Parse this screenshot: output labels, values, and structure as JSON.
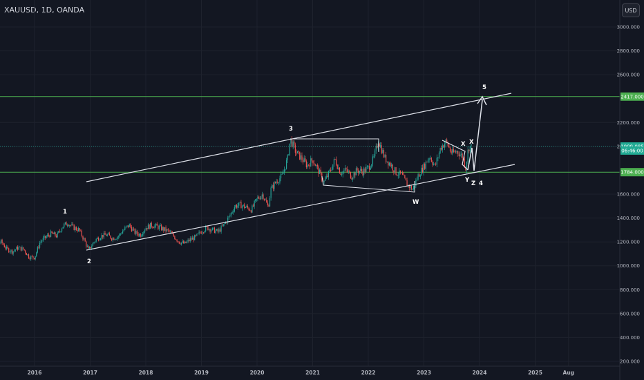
{
  "header": {
    "symbol_title": "XAUUSD, 1D, OANDA",
    "currency_label": "USD"
  },
  "chart_data": {
    "type": "candlestick",
    "y_axis": {
      "ylim": [
        160,
        3400
      ],
      "ticks": [
        "3000.000",
        "2800.000",
        "2600.000",
        "2200.000",
        "2000.000",
        "1600.000",
        "1400.000",
        "1200.000",
        "1000.000",
        "800.000",
        "600.000",
        "400.000",
        "200.000"
      ],
      "tick_values": [
        3000,
        2800,
        2600,
        2200,
        2000,
        1600,
        1400,
        1200,
        1000,
        800,
        600,
        400,
        200
      ]
    },
    "x_axis": {
      "ticks": [
        "2016",
        "2017",
        "2018",
        "2019",
        "2020",
        "2021",
        "2022",
        "2023",
        "2024",
        "2025",
        "Aug"
      ]
    },
    "price_labels": [
      {
        "text": "2417.000",
        "value": 2417,
        "color": "#4caf50"
      },
      {
        "text": "1999.085",
        "value": 1999.085,
        "color": "#22ab94"
      },
      {
        "text": "06:46:00",
        "value": 1965,
        "color": "#22ab94"
      },
      {
        "text": "1784.000",
        "value": 1784,
        "color": "#4caf50"
      }
    ],
    "horizontal_levels": [
      2417,
      1784
    ],
    "current_price": 1999.085,
    "wave_labels": [
      "1",
      "2",
      "3",
      "W",
      "X",
      "Y",
      "X",
      "Z",
      "4",
      "5"
    ],
    "close_series": [
      {
        "t": 2015.0,
        "v": 1185
      },
      {
        "t": 2015.1,
        "v": 1215
      },
      {
        "t": 2015.2,
        "v": 1195
      },
      {
        "t": 2015.3,
        "v": 1180
      },
      {
        "t": 2015.4,
        "v": 1200
      },
      {
        "t": 2015.5,
        "v": 1140
      },
      {
        "t": 2015.6,
        "v": 1120
      },
      {
        "t": 2015.7,
        "v": 1150
      },
      {
        "t": 2015.8,
        "v": 1140
      },
      {
        "t": 2015.9,
        "v": 1075
      },
      {
        "t": 2016.0,
        "v": 1070
      },
      {
        "t": 2016.1,
        "v": 1200
      },
      {
        "t": 2016.2,
        "v": 1240
      },
      {
        "t": 2016.3,
        "v": 1270
      },
      {
        "t": 2016.4,
        "v": 1250
      },
      {
        "t": 2016.5,
        "v": 1330
      },
      {
        "t": 2016.6,
        "v": 1360
      },
      {
        "t": 2016.7,
        "v": 1320
      },
      {
        "t": 2016.8,
        "v": 1300
      },
      {
        "t": 2016.9,
        "v": 1210
      },
      {
        "t": 2016.97,
        "v": 1130
      },
      {
        "t": 2017.1,
        "v": 1220
      },
      {
        "t": 2017.2,
        "v": 1250
      },
      {
        "t": 2017.3,
        "v": 1260
      },
      {
        "t": 2017.4,
        "v": 1230
      },
      {
        "t": 2017.5,
        "v": 1245
      },
      {
        "t": 2017.6,
        "v": 1300
      },
      {
        "t": 2017.7,
        "v": 1340
      },
      {
        "t": 2017.8,
        "v": 1280
      },
      {
        "t": 2017.9,
        "v": 1260
      },
      {
        "t": 2018.0,
        "v": 1320
      },
      {
        "t": 2018.1,
        "v": 1340
      },
      {
        "t": 2018.2,
        "v": 1330
      },
      {
        "t": 2018.3,
        "v": 1310
      },
      {
        "t": 2018.4,
        "v": 1290
      },
      {
        "t": 2018.5,
        "v": 1250
      },
      {
        "t": 2018.6,
        "v": 1200
      },
      {
        "t": 2018.7,
        "v": 1185
      },
      {
        "t": 2018.8,
        "v": 1220
      },
      {
        "t": 2018.9,
        "v": 1240
      },
      {
        "t": 2019.0,
        "v": 1290
      },
      {
        "t": 2019.1,
        "v": 1320
      },
      {
        "t": 2019.2,
        "v": 1300
      },
      {
        "t": 2019.3,
        "v": 1285
      },
      {
        "t": 2019.4,
        "v": 1340
      },
      {
        "t": 2019.5,
        "v": 1410
      },
      {
        "t": 2019.6,
        "v": 1500
      },
      {
        "t": 2019.7,
        "v": 1510
      },
      {
        "t": 2019.8,
        "v": 1490
      },
      {
        "t": 2019.9,
        "v": 1470
      },
      {
        "t": 2020.0,
        "v": 1560
      },
      {
        "t": 2020.1,
        "v": 1600
      },
      {
        "t": 2020.2,
        "v": 1490
      },
      {
        "t": 2020.25,
        "v": 1640
      },
      {
        "t": 2020.35,
        "v": 1710
      },
      {
        "t": 2020.45,
        "v": 1750
      },
      {
        "t": 2020.55,
        "v": 1900
      },
      {
        "t": 2020.6,
        "v": 2060
      },
      {
        "t": 2020.7,
        "v": 1950
      },
      {
        "t": 2020.8,
        "v": 1900
      },
      {
        "t": 2020.9,
        "v": 1840
      },
      {
        "t": 2021.0,
        "v": 1890
      },
      {
        "t": 2021.1,
        "v": 1800
      },
      {
        "t": 2021.2,
        "v": 1700
      },
      {
        "t": 2021.3,
        "v": 1780
      },
      {
        "t": 2021.4,
        "v": 1890
      },
      {
        "t": 2021.5,
        "v": 1780
      },
      {
        "t": 2021.6,
        "v": 1800
      },
      {
        "t": 2021.7,
        "v": 1750
      },
      {
        "t": 2021.8,
        "v": 1800
      },
      {
        "t": 2021.9,
        "v": 1790
      },
      {
        "t": 2022.0,
        "v": 1820
      },
      {
        "t": 2022.1,
        "v": 1900
      },
      {
        "t": 2022.18,
        "v": 2050
      },
      {
        "t": 2022.3,
        "v": 1900
      },
      {
        "t": 2022.4,
        "v": 1850
      },
      {
        "t": 2022.5,
        "v": 1780
      },
      {
        "t": 2022.6,
        "v": 1760
      },
      {
        "t": 2022.7,
        "v": 1680
      },
      {
        "t": 2022.8,
        "v": 1640
      },
      {
        "t": 2022.9,
        "v": 1760
      },
      {
        "t": 2023.0,
        "v": 1830
      },
      {
        "t": 2023.1,
        "v": 1920
      },
      {
        "t": 2023.2,
        "v": 1830
      },
      {
        "t": 2023.3,
        "v": 1990
      },
      {
        "t": 2023.4,
        "v": 2040
      },
      {
        "t": 2023.5,
        "v": 1940
      },
      {
        "t": 2023.6,
        "v": 1960
      },
      {
        "t": 2023.7,
        "v": 1910
      },
      {
        "t": 2023.75,
        "v": 1820
      },
      {
        "t": 2023.8,
        "v": 1990
      },
      {
        "t": 2023.85,
        "v": 1999
      }
    ]
  }
}
